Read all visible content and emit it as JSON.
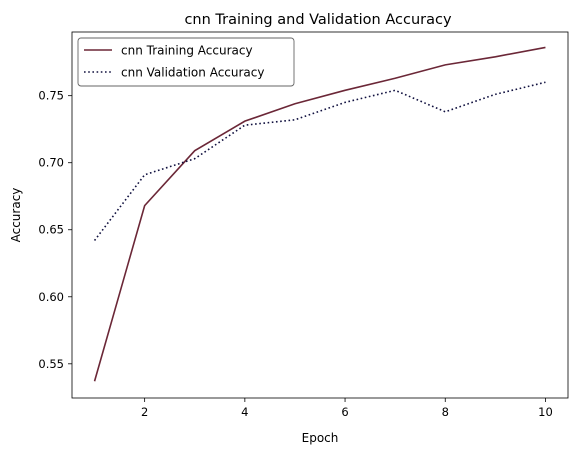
{
  "chart_data": {
    "type": "line",
    "title": "cnn Training and Validation Accuracy",
    "xlabel": "Epoch",
    "ylabel": "Accuracy",
    "xlim": [
      0.55,
      10.45
    ],
    "ylim": [
      0.5245,
      0.7975
    ],
    "xticks": [
      2,
      4,
      6,
      8,
      10
    ],
    "yticks": [
      0.55,
      0.6,
      0.65,
      0.7,
      0.75
    ],
    "ytick_labels": [
      "0.55",
      "0.60",
      "0.65",
      "0.70",
      "0.75"
    ],
    "grid": false,
    "legend_position": "upper-left",
    "x": [
      1,
      2,
      3,
      4,
      5,
      6,
      7,
      8,
      9,
      10
    ],
    "series": [
      {
        "name": "cnn Training Accuracy",
        "values": [
          0.537,
          0.668,
          0.709,
          0.731,
          0.744,
          0.754,
          0.763,
          0.773,
          0.779,
          0.786
        ],
        "color": "#6b2737",
        "style": "solid"
      },
      {
        "name": "cnn Validation Accuracy",
        "values": [
          0.642,
          0.691,
          0.703,
          0.728,
          0.732,
          0.745,
          0.754,
          0.738,
          0.751,
          0.76
        ],
        "color": "#10103f",
        "style": "dotted"
      }
    ]
  }
}
